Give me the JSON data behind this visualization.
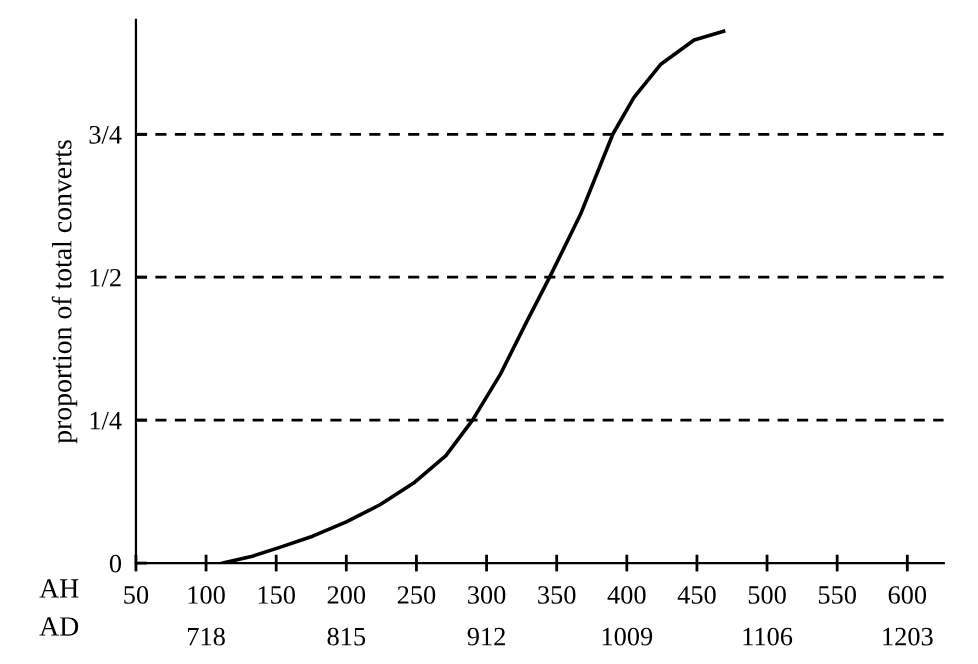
{
  "chart_data": {
    "type": "line",
    "ylabel": "proportion of total converts",
    "xlabel": "AH",
    "x2label": "AD",
    "x": [
      112,
      133,
      152,
      176,
      200,
      224,
      248,
      271,
      290,
      310,
      329,
      345,
      367,
      390,
      405,
      424,
      448,
      469
    ],
    "series": [
      {
        "color": "#000000",
        "values": [
          0,
          0.012,
          0.027,
          0.047,
          0.072,
          0.102,
          0.14,
          0.188,
          0.25,
          0.331,
          0.424,
          0.5,
          0.61,
          0.75,
          0.814,
          0.872,
          0.915,
          0.93
        ]
      }
    ],
    "xlim": [
      50,
      626
    ],
    "xticks": [
      50,
      100,
      150,
      200,
      250,
      300,
      350,
      400,
      450,
      500,
      550,
      600
    ],
    "x2lim": [
      669.5,
      1228.2
    ],
    "x2ticks": [
      718,
      815,
      912,
      1009,
      1106,
      1203
    ],
    "ylim": [
      0,
      0.95
    ],
    "yticks": [
      0,
      {
        "value": 0.25,
        "label": "1/4"
      },
      {
        "value": 0.5,
        "label": "1/2"
      },
      {
        "value": 0.75,
        "label": "3/4"
      }
    ],
    "ref_lines": [
      {
        "axis": "y",
        "value": 0.25,
        "color": "#000000",
        "line_style": "dashed"
      },
      {
        "axis": "y",
        "value": 0.5,
        "color": "#000000",
        "line_style": "dashed"
      },
      {
        "axis": "y",
        "value": 0.75,
        "color": "#000000",
        "line_style": "dashed"
      }
    ],
    "grid": false,
    "legend": false,
    "marker": "none",
    "line_style": "solid"
  }
}
